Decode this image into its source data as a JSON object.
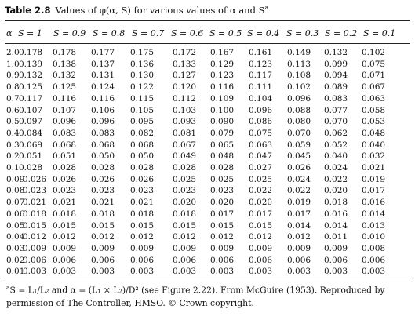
{
  "caption": {
    "label": "Table 2.8",
    "text": "Values of φ(α, S) for various values of α and S"
  },
  "header": {
    "alpha": "α",
    "columns": [
      "S = 1",
      "S = 0.9",
      "S = 0.8",
      "S = 0.7",
      "S = 0.6",
      "S = 0.5",
      "S = 0.4",
      "S = 0.3",
      "S = 0.2",
      "S = 0.1"
    ]
  },
  "rows": [
    {
      "alpha": "2.0",
      "values": [
        "0.178",
        "0.178",
        "0.177",
        "0.175",
        "0.172",
        "0.167",
        "0.161",
        "0.149",
        "0.132",
        "0.102"
      ]
    },
    {
      "alpha": "1.0",
      "values": [
        "0.139",
        "0.138",
        "0.137",
        "0.136",
        "0.133",
        "0.129",
        "0.123",
        "0.113",
        "0.099",
        "0.075"
      ]
    },
    {
      "alpha": "0.9",
      "values": [
        "0.132",
        "0.132",
        "0.131",
        "0.130",
        "0.127",
        "0.123",
        "0.117",
        "0.108",
        "0.094",
        "0.071"
      ]
    },
    {
      "alpha": "0.8",
      "values": [
        "0.125",
        "0.125",
        "0.124",
        "0.122",
        "0.120",
        "0.116",
        "0.111",
        "0.102",
        "0.089",
        "0.067"
      ]
    },
    {
      "alpha": "0.7",
      "values": [
        "0.117",
        "0.116",
        "0.116",
        "0.115",
        "0.112",
        "0.109",
        "0.104",
        "0.096",
        "0.083",
        "0.063"
      ]
    },
    {
      "alpha": "0.6",
      "values": [
        "0.107",
        "0.107",
        "0.106",
        "0.105",
        "0.103",
        "0.100",
        "0.096",
        "0.088",
        "0.077",
        "0.058"
      ]
    },
    {
      "alpha": "0.5",
      "values": [
        "0.097",
        "0.096",
        "0.096",
        "0.095",
        "0.093",
        "0.090",
        "0.086",
        "0.080",
        "0.070",
        "0.053"
      ]
    },
    {
      "alpha": "0.4",
      "values": [
        "0.084",
        "0.083",
        "0.083",
        "0.082",
        "0.081",
        "0.079",
        "0.075",
        "0.070",
        "0.062",
        "0.048"
      ]
    },
    {
      "alpha": "0.3",
      "values": [
        "0.069",
        "0.068",
        "0.068",
        "0.068",
        "0.067",
        "0.065",
        "0.063",
        "0.059",
        "0.052",
        "0.040"
      ]
    },
    {
      "alpha": "0.2",
      "values": [
        "0.051",
        "0.051",
        "0.050",
        "0.050",
        "0.049",
        "0.048",
        "0.047",
        "0.045",
        "0.040",
        "0.032"
      ]
    },
    {
      "alpha": "0.1",
      "values": [
        "0.028",
        "0.028",
        "0.028",
        "0.028",
        "0.028",
        "0.028",
        "0.027",
        "0.026",
        "0.024",
        "0.021"
      ]
    },
    {
      "alpha": "0.09",
      "values": [
        "0.026",
        "0.026",
        "0.026",
        "0.026",
        "0.025",
        "0.025",
        "0.025",
        "0.024",
        "0.022",
        "0.019"
      ]
    },
    {
      "alpha": "0.08",
      "values": [
        "0.023",
        "0.023",
        "0.023",
        "0.023",
        "0.023",
        "0.023",
        "0.022",
        "0.022",
        "0.020",
        "0.017"
      ]
    },
    {
      "alpha": "0.07",
      "values": [
        "0.021",
        "0.021",
        "0.021",
        "0.021",
        "0.020",
        "0.020",
        "0.020",
        "0.019",
        "0.018",
        "0.016"
      ]
    },
    {
      "alpha": "0.06",
      "values": [
        "0.018",
        "0.018",
        "0.018",
        "0.018",
        "0.018",
        "0.017",
        "0.017",
        "0.017",
        "0.016",
        "0.014"
      ]
    },
    {
      "alpha": "0.05",
      "values": [
        "0.015",
        "0.015",
        "0.015",
        "0.015",
        "0.015",
        "0.015",
        "0.015",
        "0.014",
        "0.014",
        "0.013"
      ]
    },
    {
      "alpha": "0.04",
      "values": [
        "0.012",
        "0.012",
        "0.012",
        "0.012",
        "0.012",
        "0.012",
        "0.012",
        "0.012",
        "0.011",
        "0.010"
      ]
    },
    {
      "alpha": "0.03",
      "values": [
        "0.009",
        "0.009",
        "0.009",
        "0.009",
        "0.009",
        "0.009",
        "0.009",
        "0.009",
        "0.009",
        "0.008"
      ]
    },
    {
      "alpha": "0.02",
      "values": [
        "0.006",
        "0.006",
        "0.006",
        "0.006",
        "0.006",
        "0.006",
        "0.006",
        "0.006",
        "0.006",
        "0.006"
      ]
    },
    {
      "alpha": "0.01",
      "values": [
        "0.003",
        "0.003",
        "0.003",
        "0.003",
        "0.003",
        "0.003",
        "0.003",
        "0.003",
        "0.003",
        "0.003"
      ]
    }
  ],
  "footnote": {
    "marker": "a",
    "line1": "S = L₁/L₂ and α = (L₁ × L₂)/D² (see Figure 2.22). From McGuire (1953). Reproduced by",
    "line2": "permission of The Controller, HMSO. © Crown copyright."
  }
}
